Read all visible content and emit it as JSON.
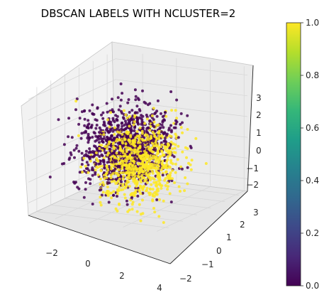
{
  "chart_data": {
    "type": "scatter",
    "projection": "3d",
    "title": "DBSCAN LABELS WITH NCLUSTER=2",
    "xlabel": "",
    "ylabel": "",
    "zlabel": "",
    "grid": true,
    "x_ticks": [
      "−2",
      "0",
      "2",
      "4"
    ],
    "y_ticks": [
      "−2",
      "−1",
      "0",
      "1",
      "2",
      "3"
    ],
    "z_ticks": [
      "−2",
      "−1",
      "0",
      "1",
      "2",
      "3"
    ],
    "xlim": [
      -3.6,
      4.2
    ],
    "ylim": [
      -2.6,
      3.6
    ],
    "zlim": [
      -2.6,
      3.4
    ],
    "colormap": "viridis",
    "colorbar": {
      "range": [
        0.0,
        1.0
      ],
      "ticks": [
        "0.0",
        "0.2",
        "0.4",
        "0.6",
        "0.8",
        "1.0"
      ],
      "stops": [
        "#440154",
        "#482878",
        "#3e4989",
        "#31688e",
        "#26828e",
        "#1f9e89",
        "#35b779",
        "#6ece58",
        "#b5de2b",
        "#fde725"
      ]
    },
    "series": [
      {
        "label_value": 0,
        "color": "#440154",
        "points_approx": 1100,
        "center": [
          -0.3,
          0.4,
          0.0
        ],
        "spread": [
          1.1,
          0.95,
          0.95
        ]
      },
      {
        "label_value": 1,
        "color": "#fde725",
        "points_approx": 800,
        "center": [
          1.3,
          -0.6,
          -0.2
        ],
        "spread": [
          1.0,
          1.0,
          0.95
        ]
      }
    ]
  }
}
